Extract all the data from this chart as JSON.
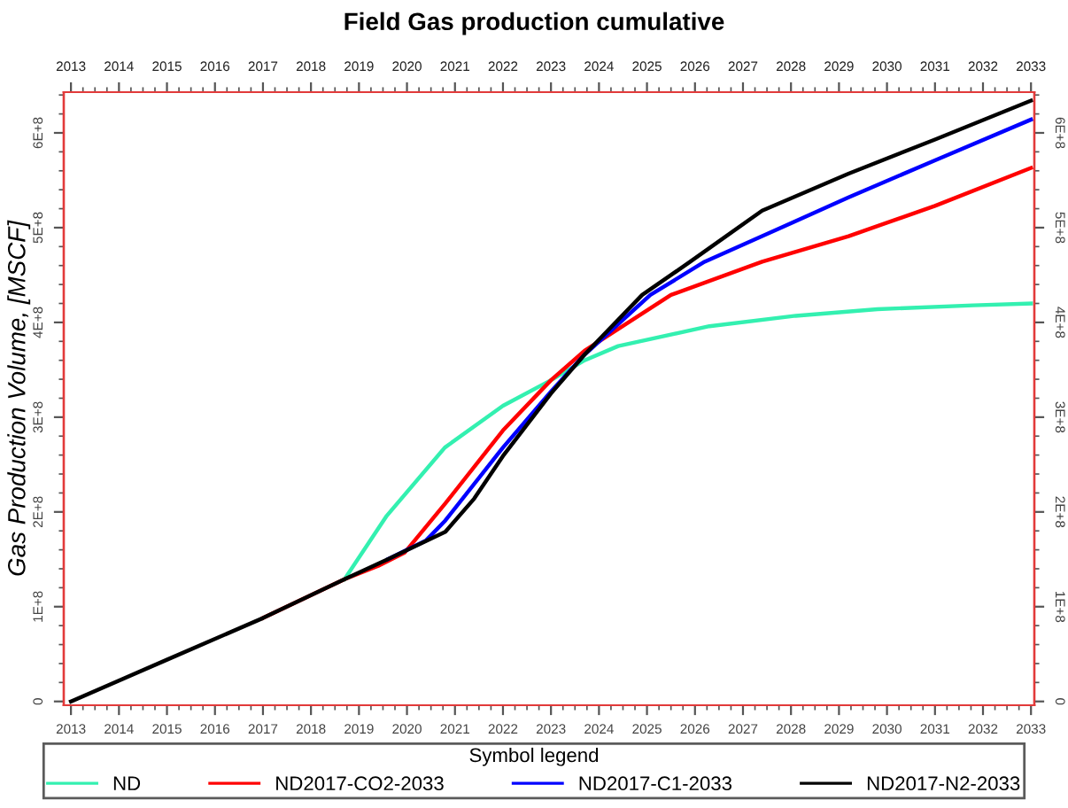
{
  "chart_data": {
    "type": "line",
    "title": "Field Gas production cumulative",
    "ylabel": "Gas Production Volume, [MSCF]",
    "legend_title": "Symbol legend",
    "legend": "bottom",
    "grid": false,
    "marker": "none",
    "line_style": "solid",
    "xlim": [
      2012.85,
      2033.07
    ],
    "xticks": [
      2013,
      2014,
      2015,
      2016,
      2017,
      2018,
      2019,
      2020,
      2021,
      2022,
      2023,
      2024,
      2025,
      2026,
      2027,
      2028,
      2029,
      2030,
      2031,
      2032,
      2033
    ],
    "x2lim": [
      2012.85,
      2033.07
    ],
    "x2ticks": [
      2013,
      2014,
      2015,
      2016,
      2017,
      2018,
      2019,
      2020,
      2021,
      2022,
      2023,
      2024,
      2025,
      2026,
      2027,
      2028,
      2029,
      2030,
      2031,
      2032,
      2033
    ],
    "ylim": [
      -4000000,
      643000000
    ],
    "yticks": [
      {
        "value": 0,
        "label": "0"
      },
      {
        "value": 100000000,
        "label": "1E+8"
      },
      {
        "value": 200000000,
        "label": "2E+8"
      },
      {
        "value": 300000000,
        "label": "3E+8"
      },
      {
        "value": 400000000,
        "label": "4E+8"
      },
      {
        "value": 500000000,
        "label": "5E+8"
      },
      {
        "value": 600000000,
        "label": "6E+8"
      }
    ],
    "y2lim": [
      -4000000,
      643000000
    ],
    "y2ticks": [
      {
        "value": 0,
        "label": "0"
      },
      {
        "value": 100000000,
        "label": "1E+8"
      },
      {
        "value": 200000000,
        "label": "2E+8"
      },
      {
        "value": 300000000,
        "label": "3E+8"
      },
      {
        "value": 400000000,
        "label": "4E+8"
      },
      {
        "value": 500000000,
        "label": "5E+8"
      },
      {
        "value": 600000000,
        "label": "6E+8"
      }
    ],
    "series": [
      {
        "name": "ND",
        "color": "#33f0b0",
        "x": [
          2018.7,
          2019.58,
          2020.79,
          2022.0,
          2023.0,
          2023.7,
          2024.4,
          2026.3,
          2028.1,
          2029.8,
          2031.8,
          2033
        ],
        "values": [
          129000000,
          196000000,
          268000000,
          312000000,
          339000000,
          360000000,
          375000000,
          396000000,
          407000000,
          414000000,
          418000000,
          420000000
        ]
      },
      {
        "name": "ND2017-CO2-2033",
        "color": "#ff0000",
        "x": [
          2017,
          2018.7,
          2019.4,
          2019.95,
          2020.8,
          2022.0,
          2023.0,
          2023.7,
          2025.5,
          2027.4,
          2029.2,
          2031.0,
          2033
        ],
        "values": [
          88000000,
          129000000,
          143000000,
          157000000,
          209000000,
          286000000,
          339000000,
          370000000,
          429000000,
          464000000,
          491000000,
          523000000,
          563000000
        ]
      },
      {
        "name": "ND2017-C1-2033",
        "color": "#0000ff",
        "x": [
          2019.6,
          2020.4,
          2020.8,
          2022.0,
          2023.0,
          2023.7,
          2025.07,
          2026.2,
          2027.4,
          2029.2,
          2031.0,
          2033
        ],
        "values": [
          150000000,
          170000000,
          191000000,
          268000000,
          327000000,
          366000000,
          429000000,
          464000000,
          491000000,
          532000000,
          571000000,
          614000000
        ]
      },
      {
        "name": "ND2017-N2-2033",
        "color": "#000000",
        "x": [
          2013,
          2015,
          2017,
          2018.7,
          2019.6,
          2020.8,
          2021.4,
          2022.0,
          2023.0,
          2023.7,
          2024.9,
          2025.9,
          2027.4,
          2029.2,
          2031.0,
          2033
        ],
        "values": [
          0,
          44000000,
          88000000,
          129000000,
          150000000,
          179000000,
          214000000,
          259000000,
          325000000,
          366000000,
          429000000,
          464000000,
          518000000,
          557000000,
          593000000,
          634000000
        ]
      }
    ]
  }
}
